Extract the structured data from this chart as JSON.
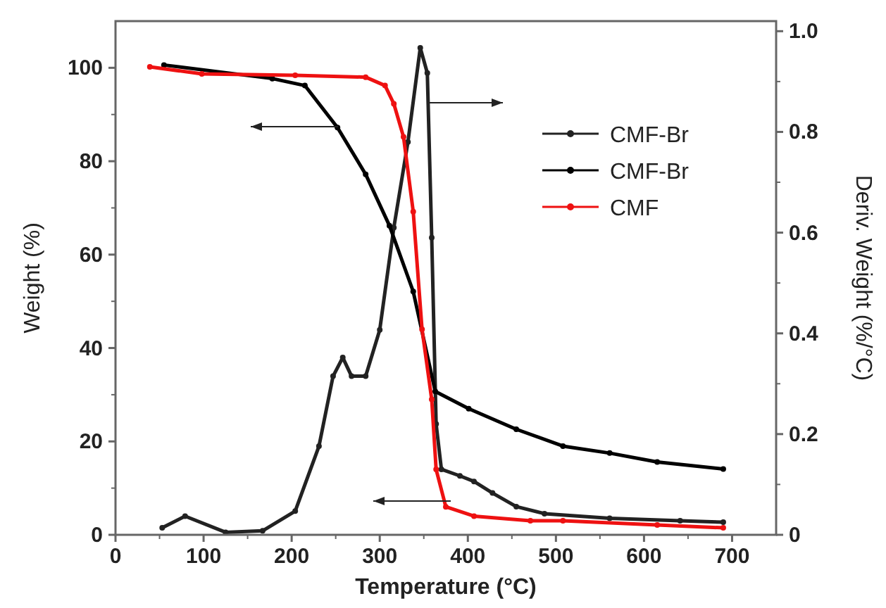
{
  "chart_data": {
    "type": "line",
    "xlabel": "Temperature (°C)",
    "ylabel": "Weight (%)",
    "y2label": "Deriv. Weight (%/°C)",
    "xlim": [
      0,
      750
    ],
    "xticks": [
      0,
      100,
      200,
      300,
      400,
      500,
      600,
      700
    ],
    "ylim": [
      0,
      110
    ],
    "yticks": [
      0,
      20,
      40,
      60,
      80,
      100
    ],
    "y2lim": [
      0,
      1.02
    ],
    "y2ticks": [
      0,
      {
        "value": 0.2,
        "label": "0.2"
      },
      {
        "value": 0.4,
        "label": "0.4"
      },
      {
        "value": 0.6,
        "label": "0.6"
      },
      {
        "value": 0.8,
        "label": "0.8"
      },
      {
        "value": 1,
        "label": "1.0"
      }
    ],
    "legend": "top right",
    "marker": "circle",
    "grid": false,
    "series": [
      {
        "name": "CMF-Br",
        "color": "#222222",
        "axis": "y2",
        "x": [
          53,
          79,
          125,
          167,
          204,
          231,
          247,
          258,
          268,
          284,
          300,
          316,
          332,
          346,
          354,
          359,
          364,
          370,
          391,
          407,
          428,
          455,
          487,
          561,
          641,
          690
        ],
        "values": [
          0.014,
          0.037,
          0.005,
          0.008,
          0.047,
          0.176,
          0.315,
          0.352,
          0.315,
          0.315,
          0.407,
          0.61,
          0.78,
          0.967,
          0.917,
          0.59,
          0.22,
          0.13,
          0.117,
          0.106,
          0.083,
          0.056,
          0.042,
          0.033,
          0.028,
          0.025
        ]
      },
      {
        "name": "CMF-Br",
        "color": "#000000",
        "x": [
          55,
          178,
          215,
          252,
          284,
          311,
          338,
          363,
          401,
          455,
          508,
          561,
          615,
          690
        ],
        "values": [
          100.6,
          97.7,
          96.2,
          87.2,
          77.2,
          66.2,
          52.1,
          30.7,
          27,
          22.6,
          19,
          17.5,
          15.6,
          14.1
        ]
      },
      {
        "name": "CMF",
        "color": "#ee1111",
        "x": [
          39,
          98,
          204,
          284,
          306,
          316,
          327,
          338,
          348,
          359,
          364,
          375,
          407,
          471,
          508,
          615,
          690
        ],
        "values": [
          100.2,
          98.7,
          98.4,
          98,
          96.2,
          92.3,
          85.2,
          69.2,
          44,
          29,
          14,
          6,
          4,
          3,
          3,
          2.1,
          1.5
        ]
      }
    ]
  }
}
